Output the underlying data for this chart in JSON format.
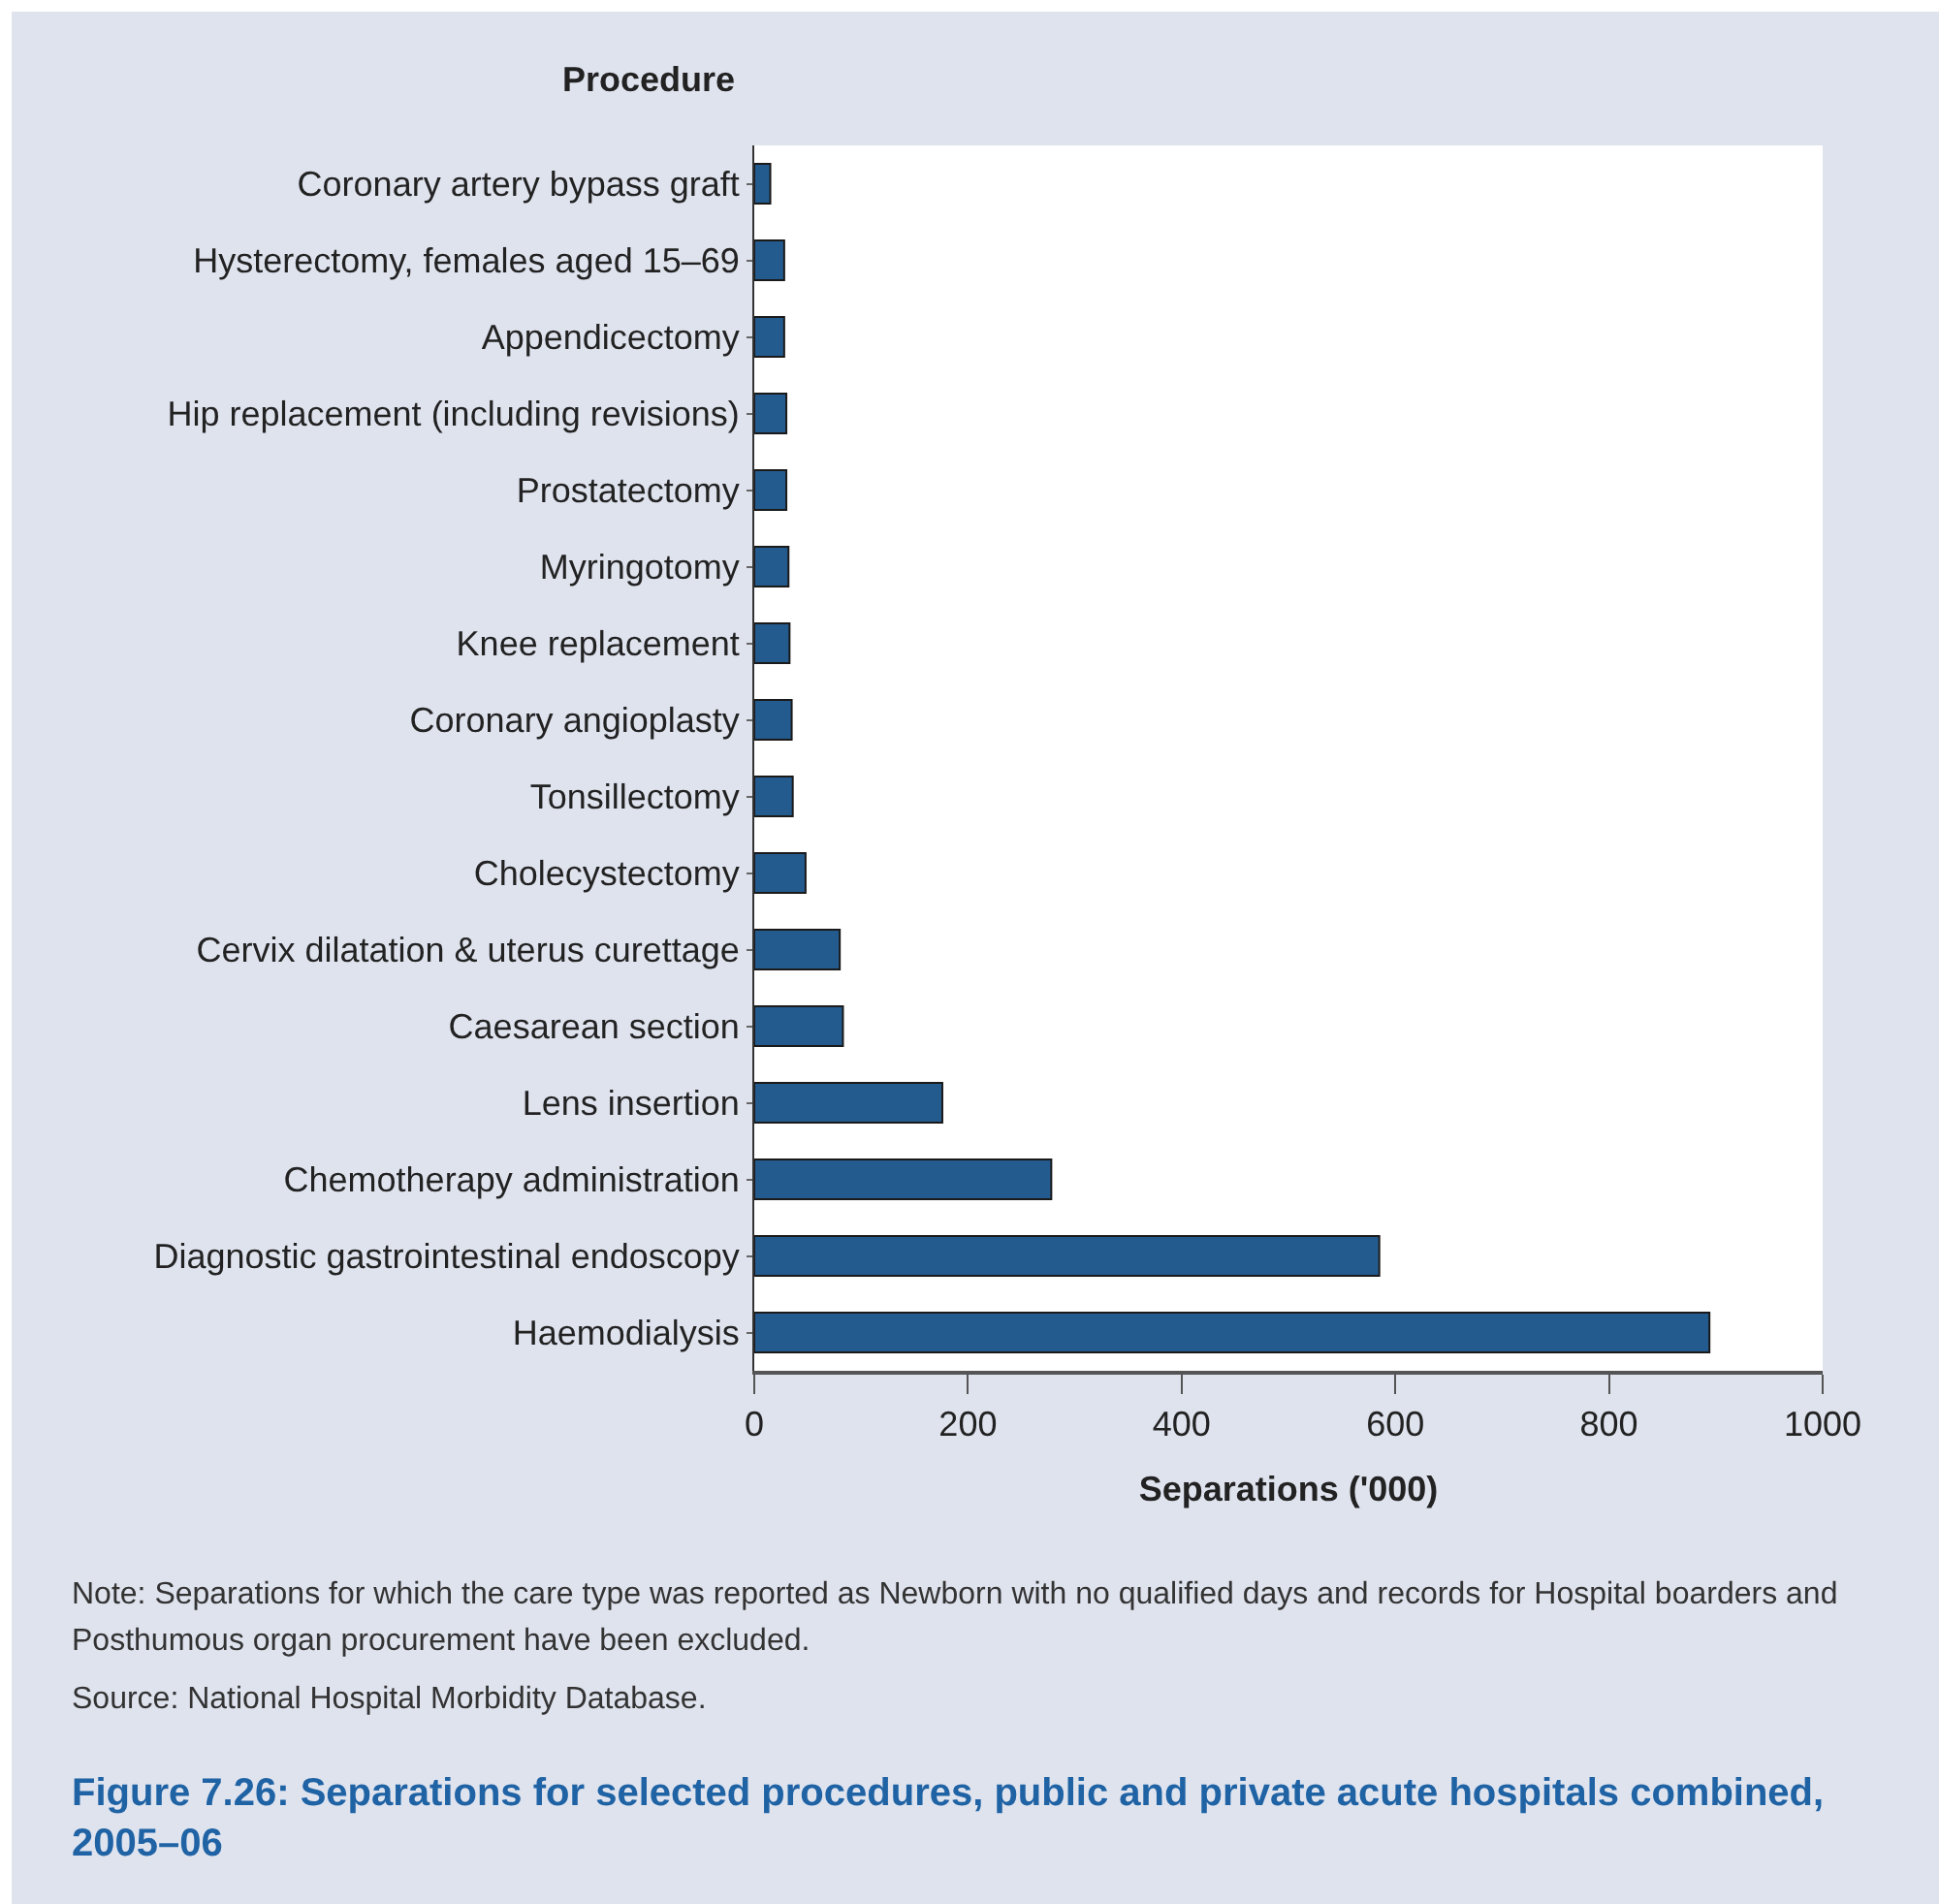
{
  "chart_data": {
    "type": "bar",
    "orientation": "horizontal",
    "title": "Figure 7.26: Separations for selected procedures, public and private acute hospitals combined, 2005–06",
    "ylabel": "Procedure",
    "xlabel": "Separations ('000)",
    "categories": [
      "Coronary artery bypass graft",
      "Hysterectomy, females aged 15–69",
      "Appendicectomy",
      "Hip replacement (including revisions)",
      "Prostatectomy",
      "Myringotomy",
      "Knee replacement",
      "Coronary angioplasty",
      "Tonsillectomy",
      "Cholecystectomy",
      "Cervix dilatation & uterus curettage",
      "Caesarean section",
      "Lens insertion",
      "Chemotherapy administration",
      "Diagnostic gastrointestinal endoscopy",
      "Haemodialysis"
    ],
    "values": [
      15,
      28,
      28,
      30,
      30,
      32,
      33,
      35,
      36,
      48,
      80,
      83,
      176,
      278,
      585,
      894
    ],
    "color": "#245b8f",
    "xlim": [
      0,
      1000
    ],
    "xticks": [
      0,
      200,
      400,
      600,
      800,
      1000
    ],
    "grid": false,
    "annotations": [
      "Note: Separations for which the care type was reported as Newborn with no qualified days and records for Hospital boarders and Posthumous organ procurement have been excluded.",
      "Source: National Hospital Morbidity Database."
    ]
  }
}
